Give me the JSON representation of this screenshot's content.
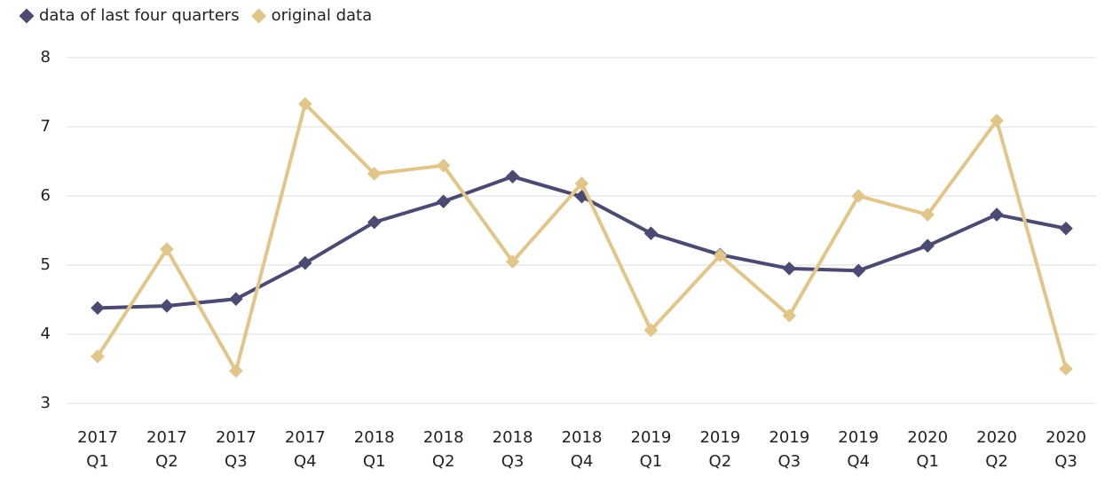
{
  "chart_data": {
    "type": "line",
    "categories": [
      "2017 Q1",
      "2017 Q2",
      "2017 Q3",
      "2017 Q4",
      "2018 Q1",
      "2018 Q2",
      "2018 Q3",
      "2018 Q4",
      "2019 Q1",
      "2019 Q2",
      "2019 Q3",
      "2019 Q4",
      "2020 Q1",
      "2020 Q2",
      "2020 Q3"
    ],
    "series": [
      {
        "name": "data of last four quarters",
        "color": "#4a4a72",
        "values": [
          4.38,
          4.41,
          4.51,
          5.03,
          5.62,
          5.92,
          6.28,
          5.99,
          5.46,
          5.15,
          4.95,
          4.92,
          5.28,
          5.73,
          5.53
        ]
      },
      {
        "name": "original data",
        "color": "#e2c589",
        "values": [
          3.68,
          5.23,
          3.47,
          7.33,
          6.32,
          6.44,
          5.05,
          6.18,
          4.06,
          5.14,
          4.27,
          6.0,
          5.73,
          7.09,
          3.5
        ]
      }
    ],
    "ylim": [
      3,
      8
    ],
    "yticks": [
      3,
      4,
      5,
      6,
      7,
      8
    ],
    "grid": true,
    "legend": "top-left"
  }
}
